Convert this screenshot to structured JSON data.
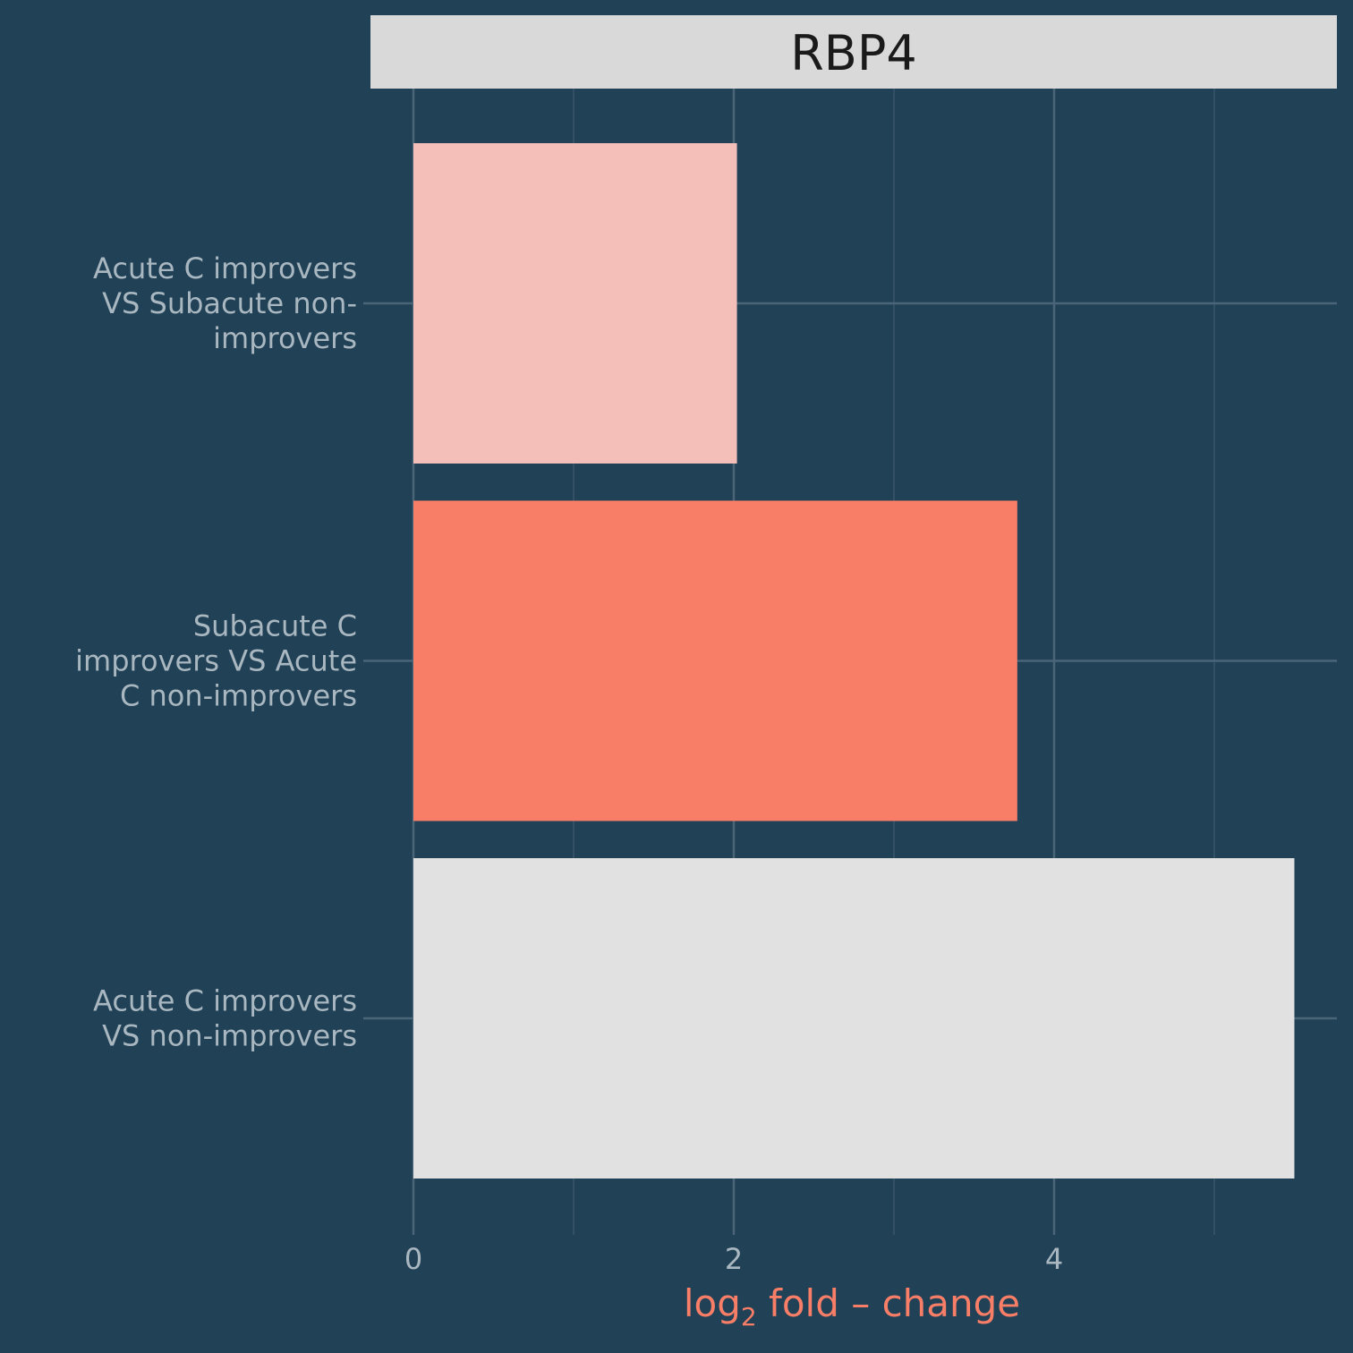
{
  "colors": {
    "background": "#214156",
    "grid_major": "#4a6478",
    "grid_minor": "#3a5669",
    "strip_background": "#d9d9d9",
    "axis_text": "#a9b7c1",
    "xlabel_color": "#f87e68"
  },
  "chart_data": {
    "type": "bar",
    "orientation": "horizontal",
    "facet_title": "RBP4",
    "xlabel_main": "log",
    "xlabel_sub": "2",
    "xlabel_rest": " fold – change",
    "ylabel": "",
    "xlim": [
      -0.28,
      5.75
    ],
    "x_ticks": [
      0,
      2,
      4
    ],
    "x_minor_ticks": [
      1,
      3,
      5
    ],
    "grid": true,
    "legend": "none",
    "categories": [
      {
        "name": "Acute C improvers VS Subacute non-improvers",
        "lines": [
          "Acute C improvers",
          "VS Subacute non-",
          "improvers"
        ],
        "value": 2.02,
        "color": "#f3bfb8"
      },
      {
        "name": "Subacute C improvers VS Acute C non-improvers",
        "lines": [
          "Subacute C",
          "improvers VS Acute",
          "C non-improvers"
        ],
        "value": 3.77,
        "color": "#f87e68"
      },
      {
        "name": "Acute C improvers VS non-improvers",
        "lines": [
          "Acute C improvers",
          "VS non-improvers"
        ],
        "value": 5.5,
        "color": "#e1e1e1"
      }
    ]
  }
}
